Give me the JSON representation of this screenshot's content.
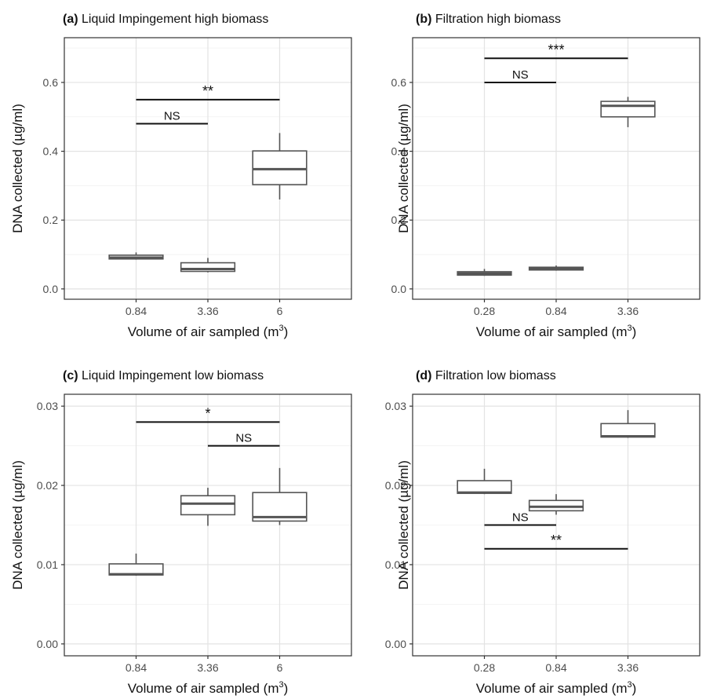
{
  "chart_data": [
    {
      "type": "box",
      "panel_label": "(a)",
      "title": "Liquid Impingement high biomass",
      "xlabel": "Volume of air sampled",
      "xlabel_unit": "m",
      "xlabel_unit_sup": "3",
      "ylabel": "DNA collected (µg/ml)",
      "categories": [
        "0.84",
        "3.36",
        "6"
      ],
      "ylim": [
        -0.03,
        0.73
      ],
      "yticks": [
        0.0,
        0.2,
        0.4,
        0.6
      ],
      "ytick_labels": [
        "0.0",
        "0.2",
        "0.4",
        "0.6"
      ],
      "boxes": [
        {
          "min": 0.085,
          "q1": 0.087,
          "median": 0.091,
          "q3": 0.098,
          "max": 0.106
        },
        {
          "min": 0.048,
          "q1": 0.051,
          "median": 0.058,
          "q3": 0.076,
          "max": 0.09
        },
        {
          "min": 0.26,
          "q1": 0.303,
          "median": 0.348,
          "q3": 0.401,
          "max": 0.453
        }
      ],
      "annotations": [
        {
          "from": "0.84",
          "to": "3.36",
          "y": 0.48,
          "text": "NS"
        },
        {
          "from": "0.84",
          "to": "6",
          "y": 0.55,
          "text": "**"
        }
      ],
      "grid": true
    },
    {
      "type": "box",
      "panel_label": "(b)",
      "title": "Filtration high biomass",
      "xlabel": "Volume of air sampled",
      "xlabel_unit": "m",
      "xlabel_unit_sup": "3",
      "ylabel": "DNA collected (µg/ml)",
      "categories": [
        "0.28",
        "0.84",
        "3.36"
      ],
      "ylim": [
        -0.03,
        0.73
      ],
      "yticks": [
        0.0,
        0.2,
        0.4,
        0.6
      ],
      "ytick_labels": [
        "0.0",
        "0.2",
        "0.4",
        "0.6"
      ],
      "boxes": [
        {
          "min": 0.038,
          "q1": 0.04,
          "median": 0.045,
          "q3": 0.05,
          "max": 0.058
        },
        {
          "min": 0.053,
          "q1": 0.055,
          "median": 0.06,
          "q3": 0.063,
          "max": 0.068
        },
        {
          "min": 0.47,
          "q1": 0.5,
          "median": 0.532,
          "q3": 0.545,
          "max": 0.558
        }
      ],
      "annotations": [
        {
          "from": "0.28",
          "to": "0.84",
          "y": 0.6,
          "text": "NS"
        },
        {
          "from": "0.28",
          "to": "3.36",
          "y": 0.67,
          "text": "***"
        }
      ],
      "grid": true
    },
    {
      "type": "box",
      "panel_label": "(c)",
      "title": "Liquid Impingement low biomass",
      "xlabel": "Volume of air sampled",
      "xlabel_unit": "m",
      "xlabel_unit_sup": "3",
      "ylabel": "DNA collected (µg/ml)",
      "categories": [
        "0.84",
        "3.36",
        "6"
      ],
      "ylim": [
        -0.0015,
        0.0315
      ],
      "yticks": [
        0.0,
        0.01,
        0.02,
        0.03
      ],
      "ytick_labels": [
        "0.00",
        "0.01",
        "0.02",
        "0.03"
      ],
      "boxes": [
        {
          "min": 0.0086,
          "q1": 0.0087,
          "median": 0.0088,
          "q3": 0.0101,
          "max": 0.0114
        },
        {
          "min": 0.0149,
          "q1": 0.0163,
          "median": 0.0177,
          "q3": 0.0187,
          "max": 0.0197
        },
        {
          "min": 0.015,
          "q1": 0.0155,
          "median": 0.016,
          "q3": 0.0191,
          "max": 0.0222
        }
      ],
      "annotations": [
        {
          "from": "0.84",
          "to": "6",
          "y": 0.028,
          "text": "*"
        },
        {
          "from": "3.36",
          "to": "6",
          "y": 0.025,
          "text": "NS"
        }
      ],
      "grid": true
    },
    {
      "type": "box",
      "panel_label": "(d)",
      "title": "Filtration low biomass",
      "xlabel": "Volume of air sampled",
      "xlabel_unit": "m",
      "xlabel_unit_sup": "3",
      "ylabel": "DNA collected (µg/ml)",
      "categories": [
        "0.28",
        "0.84",
        "3.36"
      ],
      "ylim": [
        -0.0015,
        0.0315
      ],
      "yticks": [
        0.0,
        0.01,
        0.02,
        0.03
      ],
      "ytick_labels": [
        "0.00",
        "0.01",
        "0.02",
        "0.03"
      ],
      "boxes": [
        {
          "min": 0.0189,
          "q1": 0.019,
          "median": 0.0191,
          "q3": 0.0206,
          "max": 0.0221
        },
        {
          "min": 0.0163,
          "q1": 0.0168,
          "median": 0.0173,
          "q3": 0.0181,
          "max": 0.0189
        },
        {
          "min": 0.026,
          "q1": 0.0261,
          "median": 0.0262,
          "q3": 0.0278,
          "max": 0.0295
        }
      ],
      "annotations": [
        {
          "from": "0.28",
          "to": "0.84",
          "y": 0.015,
          "text": "NS"
        },
        {
          "from": "0.28",
          "to": "3.36",
          "y": 0.012,
          "text": "**"
        }
      ],
      "grid": true
    }
  ]
}
